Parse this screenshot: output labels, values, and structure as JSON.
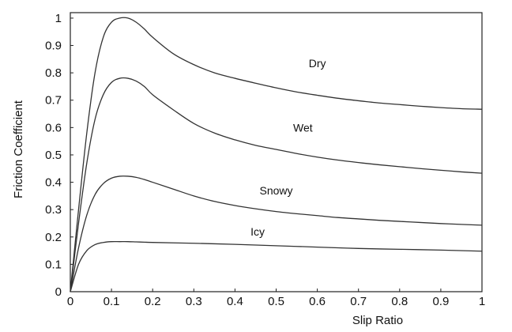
{
  "chart_data": {
    "type": "line",
    "title": "",
    "xlabel": "Slip Ratio",
    "ylabel": "Friction Coefficient",
    "xlim": [
      0,
      1
    ],
    "ylim": [
      0,
      1.02
    ],
    "grid": false,
    "legend": "inline labels",
    "xticks": [
      0,
      0.1,
      0.2,
      0.3,
      0.4,
      0.5,
      0.6,
      0.7,
      0.8,
      0.9,
      1
    ],
    "xtick_labels": [
      "0",
      "0.1",
      "0.2",
      "0.3",
      "0.4",
      "0.5",
      "0.6",
      "0.7",
      "0.8",
      "0.9",
      "1"
    ],
    "yticks": [
      0,
      0.1,
      0.2,
      0.3,
      0.4,
      0.5,
      0.6,
      0.7,
      0.8,
      0.9,
      1
    ],
    "ytick_labels": [
      "0",
      "0.1",
      "0.2",
      "0.3",
      "0.4",
      "0.5",
      "0.6",
      "0.7",
      "0.8",
      "0.9",
      "1"
    ],
    "series": [
      {
        "name": "Dry",
        "label_at": [
          0.6,
          0.82
        ],
        "x": [
          0,
          0.02,
          0.04,
          0.06,
          0.08,
          0.1,
          0.12,
          0.14,
          0.16,
          0.18,
          0.2,
          0.25,
          0.3,
          0.35,
          0.4,
          0.45,
          0.5,
          0.55,
          0.6,
          0.65,
          0.7,
          0.75,
          0.8,
          0.85,
          0.9,
          0.95,
          1.0
        ],
        "values": [
          0,
          0.3,
          0.58,
          0.8,
          0.93,
          0.985,
          1.0,
          1.0,
          0.985,
          0.96,
          0.93,
          0.87,
          0.83,
          0.8,
          0.78,
          0.762,
          0.745,
          0.73,
          0.718,
          0.707,
          0.698,
          0.69,
          0.684,
          0.678,
          0.673,
          0.669,
          0.667
        ]
      },
      {
        "name": "Wet",
        "label_at": [
          0.565,
          0.585
        ],
        "x": [
          0,
          0.02,
          0.04,
          0.06,
          0.08,
          0.1,
          0.12,
          0.14,
          0.16,
          0.18,
          0.2,
          0.25,
          0.3,
          0.35,
          0.4,
          0.45,
          0.5,
          0.55,
          0.6,
          0.65,
          0.7,
          0.75,
          0.8,
          0.85,
          0.9,
          0.95,
          1.0
        ],
        "values": [
          0,
          0.25,
          0.47,
          0.63,
          0.72,
          0.765,
          0.78,
          0.78,
          0.77,
          0.75,
          0.72,
          0.665,
          0.615,
          0.58,
          0.555,
          0.535,
          0.52,
          0.505,
          0.492,
          0.481,
          0.472,
          0.464,
          0.457,
          0.45,
          0.444,
          0.438,
          0.433
        ]
      },
      {
        "name": "Snowy",
        "label_at": [
          0.5,
          0.355
        ],
        "x": [
          0,
          0.02,
          0.04,
          0.06,
          0.08,
          0.1,
          0.12,
          0.14,
          0.16,
          0.18,
          0.2,
          0.25,
          0.3,
          0.35,
          0.4,
          0.45,
          0.5,
          0.55,
          0.6,
          0.65,
          0.7,
          0.75,
          0.8,
          0.85,
          0.9,
          0.95,
          1.0
        ],
        "values": [
          0,
          0.16,
          0.28,
          0.355,
          0.395,
          0.415,
          0.422,
          0.422,
          0.418,
          0.41,
          0.4,
          0.375,
          0.35,
          0.33,
          0.315,
          0.303,
          0.293,
          0.285,
          0.278,
          0.271,
          0.266,
          0.261,
          0.257,
          0.253,
          0.249,
          0.246,
          0.243
        ]
      },
      {
        "name": "Icy",
        "label_at": [
          0.455,
          0.205
        ],
        "x": [
          0,
          0.02,
          0.04,
          0.06,
          0.08,
          0.1,
          0.12,
          0.14,
          0.16,
          0.18,
          0.2,
          0.3,
          0.4,
          0.5,
          0.6,
          0.7,
          0.8,
          0.9,
          1.0
        ],
        "values": [
          0,
          0.1,
          0.15,
          0.172,
          0.18,
          0.183,
          0.183,
          0.183,
          0.182,
          0.181,
          0.18,
          0.177,
          0.173,
          0.168,
          0.163,
          0.158,
          0.155,
          0.152,
          0.148
        ]
      }
    ]
  }
}
